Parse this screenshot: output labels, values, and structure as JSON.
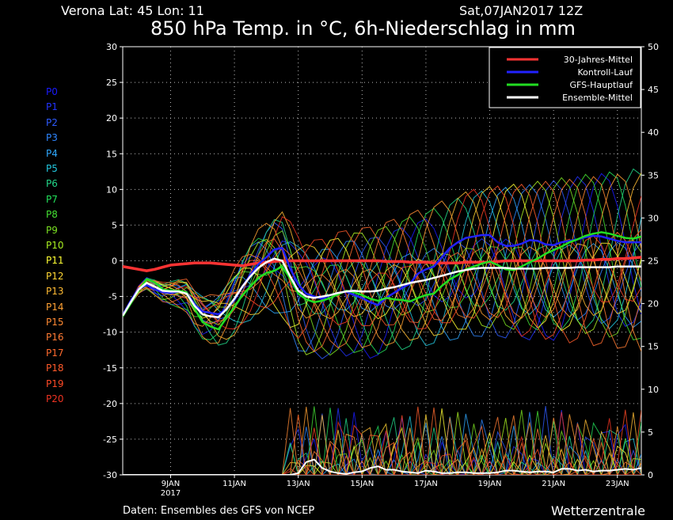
{
  "header": {
    "location": "Verona   Lat: 45  Lon: 11",
    "datetime": "Sat,07JAN2017 12Z",
    "title": "850 hPa Temp. in °C, 6h-Niederschlag in mm"
  },
  "footer": {
    "source": "Daten: Ensembles des GFS von NCEP",
    "brand": "Wetterzentrale"
  },
  "members": [
    {
      "label": "P0",
      "color": "#1a1aff"
    },
    {
      "label": "P1",
      "color": "#2233ff"
    },
    {
      "label": "P2",
      "color": "#2e5bff"
    },
    {
      "label": "P3",
      "color": "#2e86ff"
    },
    {
      "label": "P4",
      "color": "#2ea8ff"
    },
    {
      "label": "P5",
      "color": "#22c8e0"
    },
    {
      "label": "P6",
      "color": "#22d88a"
    },
    {
      "label": "P7",
      "color": "#22e05a"
    },
    {
      "label": "P8",
      "color": "#44e033"
    },
    {
      "label": "P9",
      "color": "#7ae022"
    },
    {
      "label": "P10",
      "color": "#aaf022"
    },
    {
      "label": "P11",
      "color": "#ffff33"
    },
    {
      "label": "P12",
      "color": "#ffd633"
    },
    {
      "label": "P13",
      "color": "#ffbb33"
    },
    {
      "label": "P14",
      "color": "#ffa033"
    },
    {
      "label": "P15",
      "color": "#ff8a33"
    },
    {
      "label": "P16",
      "color": "#ff7a33"
    },
    {
      "label": "P17",
      "color": "#ff6a2e"
    },
    {
      "label": "P18",
      "color": "#ff5a2a"
    },
    {
      "label": "P19",
      "color": "#ff4a26"
    },
    {
      "label": "P20",
      "color": "#ee3322"
    }
  ],
  "chart_data": {
    "type": "line",
    "x": [
      0,
      0.25,
      0.5,
      0.75,
      1,
      1.25,
      1.5,
      1.75,
      2,
      2.25,
      2.5,
      2.75,
      3,
      3.25,
      3.5,
      3.75,
      4,
      4.25,
      4.5,
      4.75,
      5,
      5.25,
      5.5,
      5.75,
      6,
      6.25,
      6.5,
      6.75,
      7,
      7.25,
      7.5,
      7.75,
      8,
      8.25,
      8.5,
      8.75,
      9,
      9.25,
      9.5,
      9.75,
      10,
      10.25,
      10.5,
      10.75,
      11,
      11.25,
      11.5,
      11.75,
      12,
      12.25,
      12.5,
      12.75,
      13,
      13.25,
      13.5,
      13.75,
      14,
      14.25,
      14.5,
      14.75,
      15,
      15.25,
      15.5,
      15.75,
      16,
      16.25
    ],
    "x_ticks": [
      {
        "x": 1.5,
        "label": "9JAN",
        "sublabel": "2017"
      },
      {
        "x": 3.5,
        "label": "11JAN",
        "sublabel": ""
      },
      {
        "x": 5.5,
        "label": "13JAN",
        "sublabel": ""
      },
      {
        "x": 7.5,
        "label": "15JAN",
        "sublabel": ""
      },
      {
        "x": 9.5,
        "label": "17JAN",
        "sublabel": ""
      },
      {
        "x": 11.5,
        "label": "19JAN",
        "sublabel": ""
      },
      {
        "x": 13.5,
        "label": "21JAN",
        "sublabel": ""
      },
      {
        "x": 15.5,
        "label": "23JAN",
        "sublabel": ""
      }
    ],
    "xlim": [
      0,
      16.25
    ],
    "ylim_left": [
      -30,
      30
    ],
    "y_ticks_left": [
      -30,
      -25,
      -20,
      -15,
      -10,
      -5,
      0,
      5,
      10,
      15,
      20,
      25,
      30
    ],
    "ylim_right": [
      0,
      50
    ],
    "y_ticks_right": [
      0,
      5,
      10,
      15,
      20,
      25,
      30,
      35,
      40,
      45,
      50
    ],
    "grid": true,
    "legend_position": "top-right",
    "series": [
      {
        "name": "30-Jahres-Mittel",
        "color": "#ff3333",
        "width": 3.5,
        "values": [
          -0.8,
          -1,
          -1.2,
          -1.4,
          -1.2,
          -0.9,
          -0.6,
          -0.5,
          -0.4,
          -0.3,
          -0.3,
          -0.3,
          -0.4,
          -0.5,
          -0.6,
          -0.7,
          -0.5,
          -0.3,
          -0.2,
          -0.1,
          0,
          0,
          0,
          0,
          0,
          0,
          0,
          0,
          0,
          0,
          0,
          0,
          0,
          -0.1,
          -0.1,
          -0.1,
          -0.2,
          -0.2,
          -0.2,
          -0.3,
          -0.3,
          -0.3,
          -0.3,
          -0.2,
          -0.2,
          -0.2,
          -0.2,
          -0.1,
          0,
          0,
          0,
          0,
          0,
          0,
          0,
          0,
          0,
          0,
          0.1,
          0.1,
          0.2,
          0.2,
          0.3,
          0.3,
          0.4,
          0.5
        ]
      },
      {
        "name": "Kontroll-Lauf",
        "color": "#2222ff",
        "width": 2.5,
        "values": [
          -7.6,
          -5.6,
          -3.9,
          -3.4,
          -4,
          -4.4,
          -4.5,
          -4.3,
          -4.4,
          -6.1,
          -7.1,
          -7.3,
          -7.5,
          -6.8,
          -5.5,
          -3.6,
          -2,
          -0.5,
          0.5,
          1.6,
          1.8,
          -1.1,
          -3.3,
          -4.6,
          -5,
          -5.3,
          -4.8,
          -4.5,
          -4.3,
          -4.8,
          -5.2,
          -5.8,
          -6.2,
          -5.2,
          -4.5,
          -3.8,
          -3.2,
          -1.8,
          -1.2,
          -0.8,
          0.5,
          1.8,
          2.6,
          3.2,
          3.4,
          3.6,
          3.6,
          2.6,
          2.1,
          2.1,
          2.4,
          2.9,
          2.8,
          2.3,
          2.2,
          2.6,
          2.8,
          3,
          3.3,
          3.5,
          3.4,
          3.1,
          2.8,
          2.6,
          2.6,
          2.6
        ]
      },
      {
        "name": "GFS-Hauptlauf",
        "color": "#22dd22",
        "width": 2.5,
        "values": [
          -7.8,
          -6,
          -4.1,
          -2.6,
          -3,
          -4,
          -4.2,
          -4.2,
          -4.4,
          -6.7,
          -8.6,
          -9.2,
          -9.6,
          -8,
          -6.5,
          -4.8,
          -3.6,
          -2.4,
          -1.7,
          -1.4,
          -0.8,
          -2.5,
          -4.6,
          -5.4,
          -5.8,
          -5.6,
          -5.2,
          -4.7,
          -4.2,
          -4.4,
          -4.8,
          -5.3,
          -5.6,
          -5.2,
          -5.4,
          -5.5,
          -5.7,
          -5.2,
          -4.8,
          -4.6,
          -3.5,
          -2.6,
          -2,
          -1.2,
          -0.8,
          -0.4,
          -0.1,
          -0.6,
          -1.2,
          -1.3,
          -0.8,
          -0.2,
          0.3,
          1,
          1.5,
          2,
          2.6,
          3,
          3.5,
          3.8,
          4,
          3.8,
          3.5,
          3.2,
          3.1,
          3.4
        ]
      },
      {
        "name": "Ensemble-Mittel",
        "color": "#ffffff",
        "width": 2.5,
        "values": [
          -7.7,
          -5.8,
          -4,
          -3.1,
          -3.6,
          -4.2,
          -4.3,
          -4.3,
          -4.6,
          -6.3,
          -7.5,
          -7.8,
          -7.9,
          -6.8,
          -5.3,
          -3.6,
          -2.2,
          -1,
          -0.2,
          0.3,
          0,
          -2.2,
          -4.2,
          -5,
          -5.2,
          -5,
          -4.8,
          -4.5,
          -4.3,
          -4.2,
          -4.3,
          -4.3,
          -4.2,
          -3.9,
          -3.7,
          -3.4,
          -3.1,
          -2.9,
          -2.7,
          -2.4,
          -2.1,
          -1.8,
          -1.5,
          -1.3,
          -1.1,
          -1,
          -1,
          -1,
          -1,
          -1.1,
          -1.1,
          -1.1,
          -1.1,
          -1,
          -1,
          -1,
          -1,
          -0.9,
          -0.9,
          -0.9,
          -0.9,
          -0.9,
          -0.8,
          -0.8,
          -0.8,
          -0.8
        ]
      }
    ],
    "precipitation_mean": [
      0,
      0,
      0,
      0,
      0,
      0,
      0,
      0,
      0,
      0,
      0,
      0,
      0,
      0,
      0,
      0,
      0,
      0,
      0,
      0,
      0,
      0,
      0.2,
      1.5,
      1.8,
      0.8,
      0.4,
      0.2,
      0.1,
      0.3,
      0.4,
      0.8,
      1,
      0.6,
      0.6,
      0.4,
      0.3,
      0.2,
      0.5,
      0.4,
      0.2,
      0.2,
      0.3,
      0.3,
      0.2,
      0.2,
      0.2,
      0.3,
      0.5,
      0.5,
      0.4,
      0.3,
      0.4,
      0.4,
      0.3,
      0.7,
      0.7,
      0.5,
      0.6,
      0.4,
      0.5,
      0.5,
      0.6,
      0.7,
      0.6,
      0.8
    ]
  }
}
